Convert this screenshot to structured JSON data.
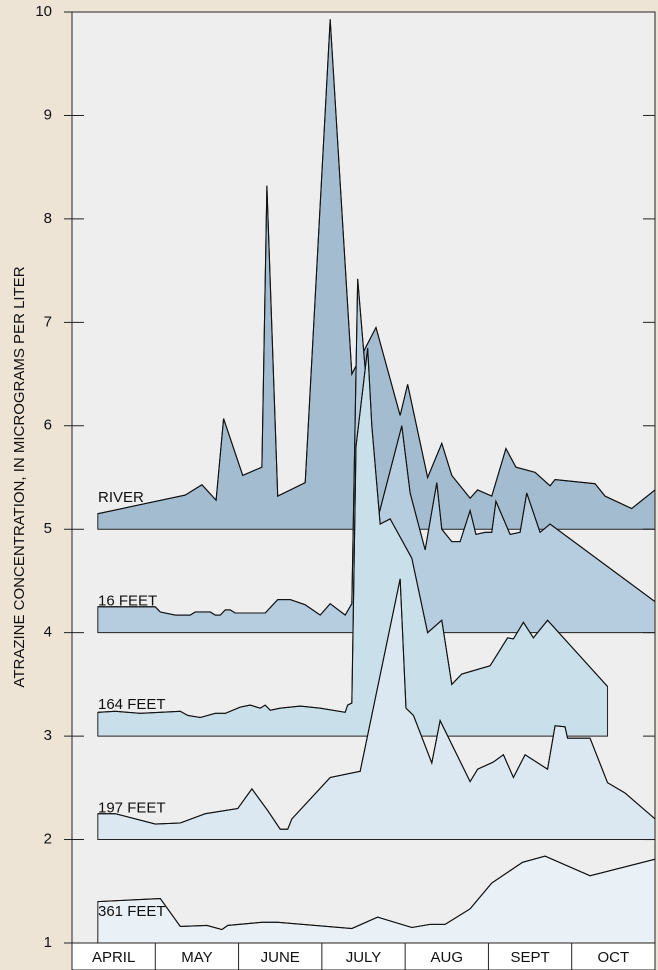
{
  "chart_data": {
    "type": "offset-area",
    "y_label": "ATRAZINE CONCENTRATION, IN MICROGRAMS PER LITER",
    "categories": [
      "APRIL",
      "MAY",
      "JUNE",
      "JULY",
      "AUG",
      "SEPT",
      "OCT"
    ],
    "xlim": [
      0,
      7
    ],
    "ylim": [
      1,
      10
    ],
    "yticks": [
      1,
      2,
      3,
      4,
      5,
      6,
      7,
      8,
      9,
      10
    ],
    "series": [
      {
        "name": "RIVER",
        "color": "#a3bccf",
        "baseline": 5,
        "x": [
          0.31,
          1.36,
          1.56,
          1.73,
          1.82,
          2.05,
          2.28,
          2.34,
          2.47,
          2.8,
          3.1,
          3.36,
          3.65,
          3.94,
          4.03,
          4.27,
          4.44,
          4.56,
          4.78,
          4.87,
          5.04,
          5.21,
          5.33,
          5.56,
          5.74,
          5.8,
          6.28,
          6.4,
          6.72,
          7.0
        ],
        "values": [
          5.15,
          5.33,
          5.43,
          5.28,
          6.07,
          5.52,
          5.6,
          8.32,
          5.32,
          5.45,
          9.93,
          6.5,
          6.95,
          6.1,
          6.4,
          5.5,
          5.83,
          5.52,
          5.3,
          5.38,
          5.32,
          5.78,
          5.6,
          5.55,
          5.42,
          5.48,
          5.44,
          5.32,
          5.2,
          5.38
        ]
      },
      {
        "name": "16 FEET",
        "color": "#b6cddf",
        "baseline": 4,
        "x": [
          0.31,
          1.0,
          1.06,
          1.24,
          1.42,
          1.48,
          1.66,
          1.72,
          1.78,
          1.84,
          1.9,
          1.96,
          2.32,
          2.47,
          2.62,
          2.8,
          2.98,
          3.1,
          3.28,
          3.36,
          3.43,
          3.67,
          3.96,
          4.06,
          4.24,
          4.38,
          4.44,
          4.56,
          4.66,
          4.78,
          4.85,
          4.96,
          5.04,
          5.09,
          5.26,
          5.38,
          5.46,
          5.62,
          5.74,
          7.0
        ],
        "values": [
          4.25,
          4.25,
          4.2,
          4.17,
          4.17,
          4.2,
          4.2,
          4.17,
          4.17,
          4.22,
          4.22,
          4.19,
          4.19,
          4.32,
          4.32,
          4.27,
          4.17,
          4.28,
          4.17,
          4.28,
          7.42,
          5.1,
          6.0,
          5.35,
          4.8,
          5.45,
          5.0,
          4.88,
          4.88,
          5.18,
          4.95,
          4.97,
          4.97,
          5.27,
          4.95,
          4.97,
          5.35,
          4.97,
          5.05,
          4.3
        ]
      },
      {
        "name": "164 FEET",
        "color": "#c9dfea",
        "baseline": 3,
        "x": [
          0.31,
          0.52,
          0.82,
          1.3,
          1.39,
          1.54,
          1.72,
          1.84,
          2.02,
          2.14,
          2.26,
          2.32,
          2.38,
          2.5,
          2.74,
          2.98,
          3.28,
          3.31,
          3.36,
          3.41,
          3.55,
          3.6,
          3.7,
          3.82,
          4.08,
          4.27,
          4.44,
          4.56,
          4.68,
          5.02,
          5.23,
          5.3,
          5.42,
          5.54,
          5.71,
          6.43
        ],
        "values": [
          3.23,
          3.24,
          3.22,
          3.24,
          3.2,
          3.18,
          3.22,
          3.22,
          3.28,
          3.3,
          3.27,
          3.3,
          3.25,
          3.27,
          3.29,
          3.27,
          3.23,
          3.3,
          3.32,
          5.8,
          6.75,
          6.0,
          5.05,
          5.1,
          4.72,
          4.0,
          4.12,
          3.5,
          3.6,
          3.68,
          3.95,
          3.94,
          4.1,
          3.95,
          4.12,
          3.48
        ]
      },
      {
        "name": "197 FEET",
        "color": "#dce8f1",
        "baseline": 2,
        "x": [
          0.31,
          0.52,
          1.0,
          1.3,
          1.6,
          1.99,
          2.16,
          2.35,
          2.5,
          2.59,
          2.64,
          3.1,
          3.46,
          3.94,
          4.01,
          4.1,
          4.32,
          4.42,
          4.78,
          4.87,
          5.06,
          5.18,
          5.3,
          5.44,
          5.71,
          5.8,
          5.92,
          5.95,
          6.22,
          6.43,
          6.64,
          7.0
        ],
        "values": [
          2.25,
          2.25,
          2.15,
          2.16,
          2.25,
          2.3,
          2.49,
          2.28,
          2.1,
          2.1,
          2.2,
          2.6,
          2.66,
          4.52,
          3.27,
          3.2,
          2.74,
          3.15,
          2.56,
          2.68,
          2.75,
          2.82,
          2.6,
          2.82,
          2.68,
          3.1,
          3.09,
          2.98,
          2.98,
          2.55,
          2.45,
          2.2
        ]
      },
      {
        "name": "361 FEET",
        "color": "#e9f0f6",
        "baseline": 1,
        "x": [
          0.31,
          1.06,
          1.3,
          1.62,
          1.8,
          1.87,
          2.28,
          2.47,
          3.36,
          3.67,
          4.08,
          4.3,
          4.48,
          4.78,
          5.04,
          5.41,
          5.68,
          6.22,
          7.0
        ],
        "values": [
          1.4,
          1.43,
          1.16,
          1.17,
          1.13,
          1.17,
          1.2,
          1.2,
          1.14,
          1.25,
          1.15,
          1.18,
          1.18,
          1.33,
          1.58,
          1.78,
          1.84,
          1.65,
          1.81
        ]
      }
    ]
  }
}
